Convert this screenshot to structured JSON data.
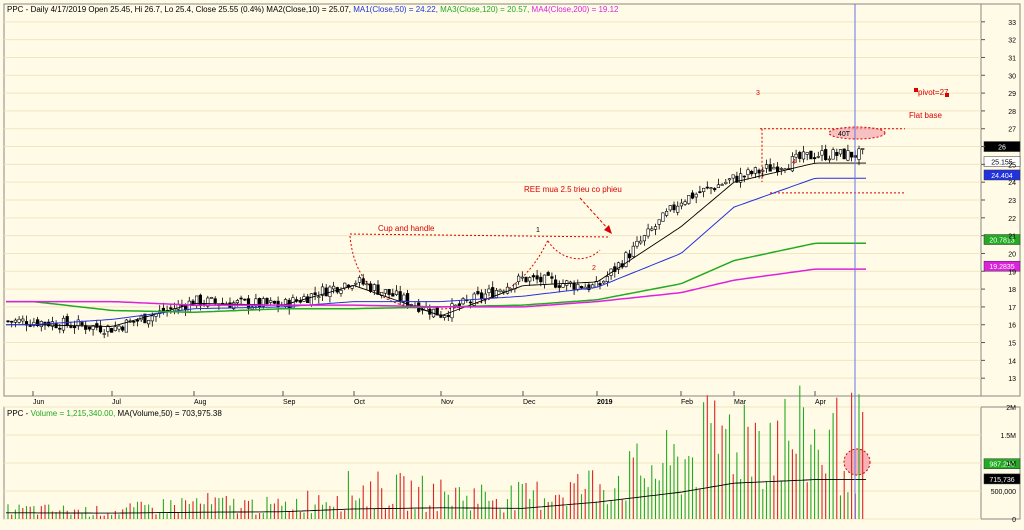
{
  "header": {
    "symbol": "PPC",
    "info": " - Daily 4/17/2019 Open 25.45, Hi 26.7, Lo 25.4, Close 25.55 (0.4%) ",
    "ma2": "MA2(Close,10) = 25.07, ",
    "ma1": "MA1(Close,50) = 24.22, ",
    "ma3": "MA3(Close,120) = 20.57, ",
    "ma4": "MA4(Close,200) = 19.12"
  },
  "volume_header": {
    "prefix": "PPC - ",
    "volume": "Volume = 1,215,340.00, ",
    "ma": "MA(Volume,50) = 703,975.38"
  },
  "colors": {
    "background": "#fffbe6",
    "ma2": "#000000",
    "ma1": "#2233dd",
    "ma3": "#22aa22",
    "ma4": "#dd22dd",
    "annotation": "#dd0000",
    "volume_up": "#22aa22",
    "volume_down": "#dd2222",
    "cursor": "#6677ee"
  },
  "annotations": {
    "cup_and_handle": "Cup and handle",
    "ree": "REE mua 2.5 trieu co phieu",
    "pivot": "pivot=27",
    "flat_base": "Flat base",
    "point_1": "1",
    "point_2": "2",
    "point_3": "3",
    "point_4": "4",
    "label_40": "40T"
  },
  "chart_data": [
    {
      "type": "candlestick",
      "x": [
        "Jun",
        "Jul",
        "Aug",
        "Sep",
        "Oct",
        "Nov",
        "Dec",
        "2019",
        "Feb",
        "Mar",
        "Apr"
      ],
      "series": [
        {
          "name": "Close",
          "values": [
            16.2,
            15.8,
            17.3,
            17.1,
            18.5,
            16.6,
            18.6,
            18.1,
            23.0,
            24.2,
            25.55
          ]
        },
        {
          "name": "MA2(Close,10)",
          "values": [
            16.0,
            15.9,
            17.2,
            17.1,
            18.2,
            16.5,
            18.2,
            18.4,
            21.5,
            24.0,
            25.07
          ]
        },
        {
          "name": "MA1(Close,50)",
          "values": [
            16.0,
            16.3,
            16.9,
            17.0,
            17.3,
            17.3,
            17.6,
            18.1,
            20.0,
            22.6,
            24.22
          ]
        },
        {
          "name": "MA3(Close,120)",
          "values": [
            17.3,
            16.8,
            16.7,
            16.9,
            16.9,
            17.0,
            17.1,
            17.4,
            18.3,
            19.6,
            20.57
          ]
        },
        {
          "name": "MA4(Close,200)",
          "values": [
            17.3,
            17.3,
            17.1,
            17.1,
            17.1,
            17.0,
            17.0,
            17.3,
            17.8,
            18.5,
            19.12
          ]
        }
      ],
      "ylim": [
        12,
        34
      ],
      "yticks": [
        13,
        14,
        15,
        16,
        17,
        18,
        19,
        20,
        21,
        22,
        23,
        24,
        25,
        26,
        27,
        28,
        29,
        30,
        31,
        32,
        33
      ],
      "value_labels": [
        "26",
        "25.155",
        "24.404",
        "20.7813",
        "19.2835"
      ],
      "pivot": 27,
      "base_low": 23.4
    },
    {
      "type": "bar",
      "x": [
        "Jun",
        "Jul",
        "Aug",
        "Sep",
        "Oct",
        "Nov",
        "Dec",
        "2019",
        "Feb",
        "Mar",
        "Apr"
      ],
      "series": [
        {
          "name": "Volume",
          "values": [
            150000,
            120000,
            260000,
            200000,
            480000,
            400000,
            350000,
            560000,
            900000,
            1450000,
            1215340
          ]
        },
        {
          "name": "MA(Volume,50)",
          "values": [
            110000,
            105000,
            120000,
            130000,
            180000,
            200000,
            190000,
            300000,
            480000,
            640000,
            703975
          ]
        }
      ],
      "ylim": [
        0,
        2000000
      ],
      "yticks": [
        "2M",
        "1.5M",
        "1M",
        "500,000",
        "0"
      ],
      "value_labels": [
        "987,260",
        "715,736"
      ]
    }
  ]
}
